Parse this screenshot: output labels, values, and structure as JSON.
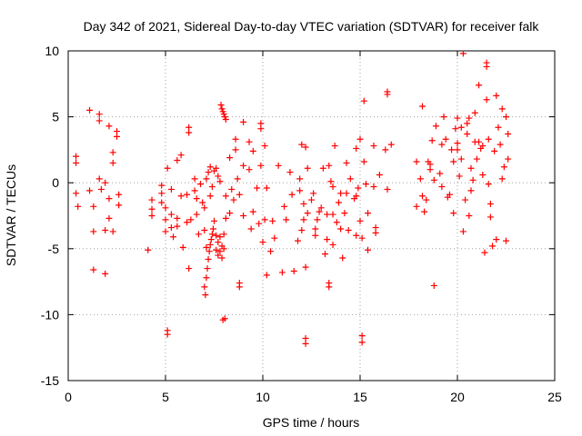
{
  "chart_data": {
    "type": "scatter",
    "title": "Day 342 of 2021, Sidereal Day-to-day VTEC variation (SDTVAR) for receiver falk",
    "xlabel": "GPS time / hours",
    "ylabel": "SDTVAR / TECUs",
    "xlim": [
      0,
      25
    ],
    "ylim": [
      -15,
      10
    ],
    "xticks": [
      "0",
      "5",
      "10",
      "15",
      "20",
      "25"
    ],
    "yticks": [
      "10",
      "5",
      "0",
      "-5",
      "-10",
      "-15"
    ],
    "grid": true,
    "marker": "plus",
    "color": "#ff0000",
    "series": [
      {
        "name": "SDTVAR",
        "points": [
          [
            0.4,
            2.0
          ],
          [
            0.4,
            1.5
          ],
          [
            0.4,
            -0.8
          ],
          [
            0.5,
            -1.8
          ],
          [
            1.1,
            5.5
          ],
          [
            1.1,
            -0.6
          ],
          [
            1.3,
            -1.8
          ],
          [
            1.3,
            -3.7
          ],
          [
            1.3,
            -6.6
          ],
          [
            1.6,
            5.2
          ],
          [
            1.6,
            4.7
          ],
          [
            1.6,
            0.3
          ],
          [
            1.7,
            -0.5
          ],
          [
            1.9,
            0.0
          ],
          [
            1.9,
            -3.6
          ],
          [
            1.9,
            -6.9
          ],
          [
            2.1,
            4.3
          ],
          [
            2.1,
            -1.2
          ],
          [
            2.1,
            -2.7
          ],
          [
            2.3,
            2.3
          ],
          [
            2.3,
            1.5
          ],
          [
            2.3,
            -3.7
          ],
          [
            2.5,
            3.9
          ],
          [
            2.5,
            3.5
          ],
          [
            2.6,
            -0.9
          ],
          [
            2.6,
            -1.7
          ],
          [
            4.1,
            -5.1
          ],
          [
            4.3,
            -1.3
          ],
          [
            4.3,
            -2.0
          ],
          [
            4.3,
            -2.5
          ],
          [
            4.8,
            -0.2
          ],
          [
            4.8,
            -0.8
          ],
          [
            4.8,
            -1.5
          ],
          [
            5.0,
            -1.9
          ],
          [
            5.0,
            -2.8
          ],
          [
            5.0,
            -3.7
          ],
          [
            5.1,
            -11.2
          ],
          [
            5.1,
            -11.5
          ],
          [
            5.1,
            1.1
          ],
          [
            5.3,
            -0.5
          ],
          [
            5.3,
            -2.4
          ],
          [
            5.3,
            -3.4
          ],
          [
            5.4,
            -4.1
          ],
          [
            5.6,
            1.7
          ],
          [
            5.6,
            -2.7
          ],
          [
            5.6,
            -3.3
          ],
          [
            5.8,
            2.1
          ],
          [
            5.8,
            -1.0
          ],
          [
            5.9,
            -4.9
          ],
          [
            6.1,
            -0.9
          ],
          [
            6.1,
            -3.0
          ],
          [
            6.2,
            4.2
          ],
          [
            6.2,
            3.8
          ],
          [
            6.2,
            -6.5
          ],
          [
            6.3,
            -2.8
          ],
          [
            6.5,
            -0.6
          ],
          [
            6.5,
            0.3
          ],
          [
            6.6,
            -1.2
          ],
          [
            6.6,
            -2.4
          ],
          [
            6.7,
            -3.9
          ],
          [
            6.8,
            -0.1
          ],
          [
            6.9,
            -1.5
          ],
          [
            7.0,
            -1.9
          ],
          [
            7.0,
            -3.6
          ],
          [
            7.1,
            -4.9
          ],
          [
            7.0,
            -7.9
          ],
          [
            7.05,
            -8.5
          ],
          [
            7.1,
            -7.2
          ],
          [
            7.15,
            -6.5
          ],
          [
            7.2,
            -5.8
          ],
          [
            7.25,
            -5.2
          ],
          [
            7.3,
            -4.7
          ],
          [
            7.35,
            -4.3
          ],
          [
            7.4,
            -3.9
          ],
          [
            7.45,
            -3.5
          ],
          [
            7.1,
            0.3
          ],
          [
            7.2,
            0.8
          ],
          [
            7.3,
            1.2
          ],
          [
            7.3,
            -1.0
          ],
          [
            7.4,
            -0.3
          ],
          [
            7.5,
            0.9
          ],
          [
            7.5,
            -2.9
          ],
          [
            7.6,
            -4.0
          ],
          [
            7.6,
            -5.1
          ],
          [
            7.7,
            -4.5
          ],
          [
            7.7,
            -5.5
          ],
          [
            7.8,
            -4.1
          ],
          [
            7.8,
            -5.2
          ],
          [
            7.9,
            -4.8
          ],
          [
            7.9,
            -5.7
          ],
          [
            8.0,
            -3.9
          ],
          [
            8.0,
            -5.0
          ],
          [
            8.1,
            -2.7
          ],
          [
            8.1,
            -1.0
          ],
          [
            7.6,
            1.1
          ],
          [
            7.7,
            0.5
          ],
          [
            7.8,
            0.1
          ],
          [
            7.85,
            5.9
          ],
          [
            7.9,
            5.6
          ],
          [
            7.95,
            5.4
          ],
          [
            8.0,
            5.2
          ],
          [
            8.05,
            5.0
          ],
          [
            8.1,
            4.8
          ],
          [
            7.95,
            -10.4
          ],
          [
            8.05,
            -10.3
          ],
          [
            8.3,
            1.9
          ],
          [
            8.3,
            -2.3
          ],
          [
            8.4,
            -0.5
          ],
          [
            8.5,
            -1.3
          ],
          [
            8.6,
            3.3
          ],
          [
            8.6,
            2.5
          ],
          [
            8.7,
            0.3
          ],
          [
            8.8,
            -0.9
          ],
          [
            8.8,
            -7.6
          ],
          [
            8.8,
            -7.9
          ],
          [
            9.0,
            4.6
          ],
          [
            9.0,
            1.3
          ],
          [
            9.0,
            -2.5
          ],
          [
            9.3,
            3.1
          ],
          [
            9.3,
            1.0
          ],
          [
            9.4,
            -3.5
          ],
          [
            9.5,
            2.4
          ],
          [
            9.5,
            -2.2
          ],
          [
            9.7,
            -0.4
          ],
          [
            9.8,
            -3.1
          ],
          [
            9.9,
            4.5
          ],
          [
            9.9,
            4.1
          ],
          [
            9.9,
            1.3
          ],
          [
            10.0,
            -4.5
          ],
          [
            10.1,
            2.8
          ],
          [
            10.1,
            -2.8
          ],
          [
            10.2,
            -7.0
          ],
          [
            10.2,
            -0.4
          ],
          [
            10.4,
            -5.2
          ],
          [
            10.5,
            -2.9
          ],
          [
            10.6,
            -4.2
          ],
          [
            10.8,
            1.3
          ],
          [
            11.0,
            -6.8
          ],
          [
            11.1,
            -1.8
          ],
          [
            11.2,
            -2.8
          ],
          [
            11.4,
            0.8
          ],
          [
            11.5,
            -0.9
          ],
          [
            11.6,
            -6.7
          ],
          [
            11.8,
            -4.4
          ],
          [
            11.9,
            0.3
          ],
          [
            11.9,
            -0.6
          ],
          [
            12.0,
            2.9
          ],
          [
            12.0,
            -3.6
          ],
          [
            12.1,
            -1.6
          ],
          [
            12.1,
            -2.8
          ],
          [
            12.2,
            -11.8
          ],
          [
            12.2,
            -12.2
          ],
          [
            12.2,
            -6.4
          ],
          [
            12.2,
            2.7
          ],
          [
            12.3,
            1.1
          ],
          [
            12.3,
            -2.3
          ],
          [
            12.5,
            -1.3
          ],
          [
            12.6,
            -0.8
          ],
          [
            12.7,
            -3.5
          ],
          [
            12.7,
            -4.0
          ],
          [
            12.8,
            -2.8
          ],
          [
            12.9,
            -2.2
          ],
          [
            13.0,
            -1.9
          ],
          [
            13.1,
            1.1
          ],
          [
            13.2,
            -5.4
          ],
          [
            13.3,
            -4.3
          ],
          [
            13.3,
            -2.4
          ],
          [
            13.4,
            -7.6
          ],
          [
            13.4,
            -7.9
          ],
          [
            13.4,
            1.3
          ],
          [
            13.5,
            0.1
          ],
          [
            13.6,
            -0.3
          ],
          [
            13.6,
            -2.4
          ],
          [
            13.6,
            -4.7
          ],
          [
            13.7,
            2.8
          ],
          [
            13.8,
            -3.0
          ],
          [
            13.9,
            -1.5
          ],
          [
            14.0,
            -0.8
          ],
          [
            14.0,
            -3.5
          ],
          [
            14.1,
            -5.7
          ],
          [
            14.2,
            -2.3
          ],
          [
            14.3,
            -0.8
          ],
          [
            14.3,
            1.5
          ],
          [
            14.4,
            -3.6
          ],
          [
            14.5,
            0.3
          ],
          [
            14.7,
            -1.2
          ],
          [
            14.8,
            2.6
          ],
          [
            14.8,
            -1.0
          ],
          [
            14.8,
            -4.0
          ],
          [
            14.9,
            -0.4
          ],
          [
            15.0,
            3.3
          ],
          [
            15.0,
            -2.9
          ],
          [
            15.1,
            -11.6
          ],
          [
            15.1,
            -12.1
          ],
          [
            15.1,
            -4.2
          ],
          [
            15.2,
            6.2
          ],
          [
            15.2,
            1.6
          ],
          [
            15.3,
            -0.1
          ],
          [
            15.4,
            -2.3
          ],
          [
            15.4,
            -5.1
          ],
          [
            15.7,
            2.8
          ],
          [
            15.7,
            -0.3
          ],
          [
            15.8,
            -3.4
          ],
          [
            15.8,
            -3.8
          ],
          [
            16.0,
            0.6
          ],
          [
            16.3,
            2.5
          ],
          [
            16.4,
            6.9
          ],
          [
            16.4,
            6.7
          ],
          [
            16.4,
            -0.5
          ],
          [
            16.6,
            2.9
          ],
          [
            17.9,
            1.6
          ],
          [
            17.9,
            -1.8
          ],
          [
            18.1,
            0.3
          ],
          [
            18.2,
            5.8
          ],
          [
            18.2,
            -1.0
          ],
          [
            18.3,
            -2.2
          ],
          [
            18.4,
            -1.3
          ],
          [
            18.5,
            1.6
          ],
          [
            18.6,
            1.4
          ],
          [
            18.6,
            1.0
          ],
          [
            18.7,
            3.2
          ],
          [
            18.8,
            -7.8
          ],
          [
            18.8,
            0.2
          ],
          [
            18.9,
            4.3
          ],
          [
            19.1,
            0.7
          ],
          [
            19.2,
            2.9
          ],
          [
            19.2,
            -0.3
          ],
          [
            19.3,
            5.0
          ],
          [
            19.4,
            3.3
          ],
          [
            19.5,
            -1.1
          ],
          [
            19.6,
            -0.9
          ],
          [
            19.7,
            2.5
          ],
          [
            19.8,
            -2.3
          ],
          [
            19.8,
            1.6
          ],
          [
            19.9,
            4.1
          ],
          [
            20.0,
            4.9
          ],
          [
            20.0,
            2.5
          ],
          [
            20.0,
            3.0
          ],
          [
            20.1,
            0.5
          ],
          [
            20.2,
            1.8
          ],
          [
            20.2,
            4.2
          ],
          [
            20.3,
            9.8
          ],
          [
            20.3,
            -3.7
          ],
          [
            20.4,
            -1.3
          ],
          [
            20.5,
            4.5
          ],
          [
            20.5,
            3.7
          ],
          [
            20.6,
            4.9
          ],
          [
            20.6,
            -2.5
          ],
          [
            20.7,
            1.1
          ],
          [
            20.7,
            -0.6
          ],
          [
            20.8,
            0.2
          ],
          [
            20.9,
            3.1
          ],
          [
            20.9,
            5.3
          ],
          [
            21.0,
            1.8
          ],
          [
            21.1,
            7.4
          ],
          [
            21.1,
            3.1
          ],
          [
            21.2,
            2.6
          ],
          [
            21.3,
            2.8
          ],
          [
            21.3,
            0.6
          ],
          [
            21.4,
            -5.3
          ],
          [
            21.5,
            9.1
          ],
          [
            21.5,
            8.8
          ],
          [
            21.5,
            6.3
          ],
          [
            21.6,
            -0.1
          ],
          [
            21.6,
            3.3
          ],
          [
            21.7,
            -1.6
          ],
          [
            21.7,
            -2.6
          ],
          [
            21.8,
            -4.8
          ],
          [
            21.9,
            2.4
          ],
          [
            22.0,
            6.6
          ],
          [
            22.0,
            -4.3
          ],
          [
            22.1,
            4.2
          ],
          [
            22.2,
            2.9
          ],
          [
            22.3,
            5.6
          ],
          [
            22.3,
            0.3
          ],
          [
            22.4,
            1.2
          ],
          [
            22.5,
            5.0
          ],
          [
            22.5,
            -4.4
          ],
          [
            22.6,
            1.8
          ],
          [
            22.6,
            3.7
          ]
        ]
      }
    ]
  }
}
